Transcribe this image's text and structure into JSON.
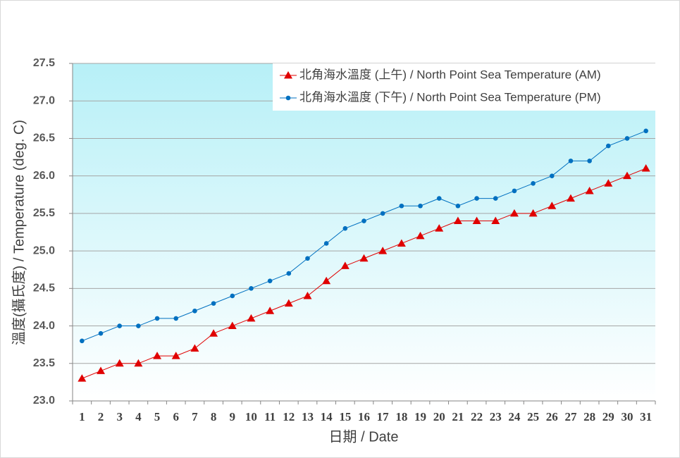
{
  "chart_data": {
    "type": "line",
    "x_label": "日期 / Date",
    "y_label": "溫度(攝氏度) / Temperature (deg. C)",
    "categories": [
      "1",
      "2",
      "3",
      "4",
      "5",
      "6",
      "7",
      "8",
      "9",
      "10",
      "11",
      "12",
      "13",
      "14",
      "15",
      "16",
      "17",
      "18",
      "19",
      "20",
      "21",
      "22",
      "23",
      "24",
      "25",
      "26",
      "27",
      "28",
      "29",
      "30",
      "31"
    ],
    "series": [
      {
        "name": "北角海水溫度 (上午) / North Point Sea Temperature (AM)",
        "color": "#e00000",
        "marker": "triangle",
        "values": [
          23.3,
          23.4,
          23.5,
          23.5,
          23.6,
          23.6,
          23.7,
          23.9,
          24.0,
          24.1,
          24.2,
          24.3,
          24.4,
          24.6,
          24.8,
          24.9,
          25.0,
          25.1,
          25.2,
          25.3,
          25.4,
          25.4,
          25.4,
          25.5,
          25.5,
          25.6,
          25.7,
          25.8,
          25.9,
          26.0,
          26.1
        ]
      },
      {
        "name": "北角海水溫度 (下午) / North Point Sea Temperature (PM)",
        "color": "#0070c0",
        "marker": "circle",
        "values": [
          23.8,
          23.9,
          24.0,
          24.0,
          24.1,
          24.1,
          24.2,
          24.3,
          24.4,
          24.5,
          24.6,
          24.7,
          24.9,
          25.1,
          25.3,
          25.4,
          25.5,
          25.6,
          25.6,
          25.7,
          25.6,
          25.7,
          25.7,
          25.8,
          25.9,
          26.0,
          26.2,
          26.2,
          26.4,
          26.5,
          26.6
        ]
      }
    ],
    "ylim": [
      23,
      27.5
    ],
    "yticks": [
      {
        "value": 23,
        "label": "23.0"
      },
      23.5,
      {
        "value": 24,
        "label": "24.0"
      },
      24.5,
      {
        "value": 25,
        "label": "25.0"
      },
      25.5,
      {
        "value": 26,
        "label": "26.0"
      },
      26.5,
      {
        "value": 27,
        "label": "27.0"
      },
      27.5
    ],
    "grid": true,
    "legend": "upper right"
  }
}
